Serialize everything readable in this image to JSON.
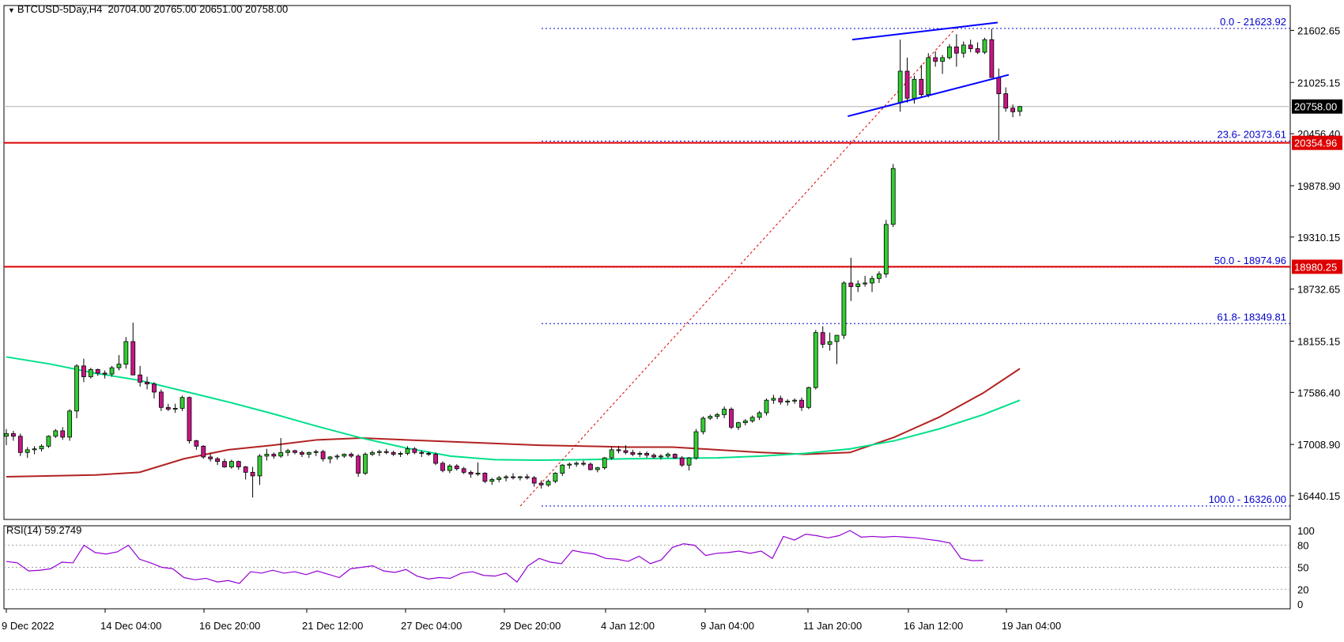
{
  "header": {
    "symbol": "BTCUSD-5Day,H4",
    "ohlc": "20704.00 20765.00 20651.00 20758.00"
  },
  "rsi": {
    "label": "RSI(14) 59.2749",
    "levels": [
      "100",
      "80",
      "50",
      "20",
      "0"
    ]
  },
  "colors": {
    "bull": "#32cd32",
    "bear": "#c71585",
    "ma_fast": "#00e08a",
    "ma_slow": "#b22222",
    "fib": "#0000cd",
    "sr_line": "#dd0000",
    "channel": "#0000ff",
    "rsi_line": "#9400d3"
  },
  "chart_data": {
    "type": "candlestick",
    "y_ticks": [
      "21602.65",
      "21025.15",
      "20456.40",
      "19878.90",
      "19310.15",
      "18732.65",
      "18155.15",
      "17586.40",
      "17008.90",
      "16440.15"
    ],
    "x_ticks": [
      "9 Dec 2022",
      "14 Dec 04:00",
      "16 Dec 20:00",
      "21 Dec 12:00",
      "27 Dec 04:00",
      "29 Dec 20:00",
      "4 Jan 12:00",
      "9 Jan 04:00",
      "11 Jan 20:00",
      "16 Jan 12:00",
      "19 Jan 04:00"
    ],
    "current_price": "20758.00",
    "price_levels": [
      {
        "label": "20354.96",
        "value": 20354.96
      },
      {
        "label": "18980.25",
        "value": 18980.25
      }
    ],
    "fibonacci": [
      {
        "label": "0.0 - 21623.92",
        "value": 21623.92
      },
      {
        "label": "23.6- 20373.61",
        "value": 20373.61
      },
      {
        "label": "50.0 - 18974.96",
        "value": 18974.96
      },
      {
        "label": "61.8- 18349.81",
        "value": 18349.81
      },
      {
        "label": "100.0 - 16326.00",
        "value": 16326.0
      }
    ],
    "candles": [
      [
        17100,
        17180,
        17000,
        17130
      ],
      [
        17130,
        17160,
        17050,
        17100
      ],
      [
        17100,
        17130,
        16880,
        16920
      ],
      [
        16920,
        16980,
        16860,
        16950
      ],
      [
        16950,
        16990,
        16900,
        16960
      ],
      [
        16960,
        17010,
        16930,
        16990
      ],
      [
        16990,
        17110,
        16970,
        17100
      ],
      [
        17100,
        17180,
        17080,
        17160
      ],
      [
        17160,
        17200,
        17060,
        17090
      ],
      [
        17090,
        17400,
        17050,
        17380
      ],
      [
        17380,
        17900,
        17300,
        17880
      ],
      [
        17880,
        17960,
        17700,
        17760
      ],
      [
        17760,
        17860,
        17740,
        17840
      ],
      [
        17840,
        17850,
        17770,
        17800
      ],
      [
        17800,
        17830,
        17740,
        17790
      ],
      [
        17790,
        17880,
        17760,
        17860
      ],
      [
        17860,
        18000,
        17830,
        17900
      ],
      [
        17900,
        18200,
        17850,
        18150
      ],
      [
        18150,
        18360,
        17800,
        17780
      ],
      [
        17780,
        17880,
        17650,
        17700
      ],
      [
        17700,
        17760,
        17620,
        17680
      ],
      [
        17680,
        17700,
        17520,
        17590
      ],
      [
        17590,
        17620,
        17380,
        17420
      ],
      [
        17420,
        17460,
        17380,
        17400
      ],
      [
        17400,
        17460,
        17360,
        17410
      ],
      [
        17410,
        17550,
        17380,
        17530
      ],
      [
        17530,
        17540,
        17020,
        17050
      ],
      [
        17050,
        17060,
        16950,
        16990
      ],
      [
        16990,
        17000,
        16850,
        16870
      ],
      [
        16870,
        16910,
        16820,
        16850
      ],
      [
        16850,
        16870,
        16780,
        16820
      ],
      [
        16820,
        16850,
        16750,
        16760
      ],
      [
        16760,
        16840,
        16740,
        16820
      ],
      [
        16820,
        16830,
        16730,
        16760
      ],
      [
        16760,
        16770,
        16620,
        16700
      ],
      [
        16700,
        16760,
        16420,
        16660
      ],
      [
        16660,
        16900,
        16560,
        16880
      ],
      [
        16880,
        16960,
        16830,
        16900
      ],
      [
        16900,
        16920,
        16850,
        16880
      ],
      [
        16880,
        17080,
        16860,
        16920
      ],
      [
        16920,
        16960,
        16880,
        16940
      ],
      [
        16940,
        16950,
        16900,
        16920
      ],
      [
        16920,
        16940,
        16870,
        16900
      ],
      [
        16900,
        16930,
        16860,
        16920
      ],
      [
        16920,
        16950,
        16880,
        16930
      ],
      [
        16930,
        16950,
        16820,
        16850
      ],
      [
        16850,
        16880,
        16800,
        16870
      ],
      [
        16870,
        16900,
        16840,
        16880
      ],
      [
        16880,
        16910,
        16860,
        16900
      ],
      [
        16900,
        16920,
        16860,
        16880
      ],
      [
        16880,
        16900,
        16650,
        16690
      ],
      [
        16690,
        16920,
        16670,
        16900
      ],
      [
        16900,
        16940,
        16880,
        16920
      ],
      [
        16920,
        16950,
        16880,
        16930
      ],
      [
        16930,
        16960,
        16900,
        16920
      ],
      [
        16920,
        16940,
        16880,
        16900
      ],
      [
        16900,
        16930,
        16870,
        16910
      ],
      [
        16910,
        16990,
        16890,
        16960
      ],
      [
        16960,
        16980,
        16900,
        16920
      ],
      [
        16920,
        16940,
        16870,
        16910
      ],
      [
        16910,
        16930,
        16880,
        16900
      ],
      [
        16900,
        16920,
        16780,
        16800
      ],
      [
        16800,
        16820,
        16700,
        16720
      ],
      [
        16720,
        16790,
        16690,
        16770
      ],
      [
        16770,
        16790,
        16720,
        16740
      ],
      [
        16740,
        16760,
        16680,
        16700
      ],
      [
        16700,
        16720,
        16640,
        16680
      ],
      [
        16680,
        16810,
        16660,
        16690
      ],
      [
        16690,
        16700,
        16580,
        16600
      ],
      [
        16600,
        16640,
        16560,
        16620
      ],
      [
        16620,
        16660,
        16590,
        16640
      ],
      [
        16640,
        16670,
        16600,
        16650
      ],
      [
        16650,
        16690,
        16620,
        16640
      ],
      [
        16640,
        16660,
        16610,
        16650
      ],
      [
        16650,
        16680,
        16620,
        16640
      ],
      [
        16640,
        16660,
        16540,
        16580
      ],
      [
        16580,
        16610,
        16520,
        16560
      ],
      [
        16560,
        16620,
        16540,
        16600
      ],
      [
        16600,
        16700,
        16580,
        16690
      ],
      [
        16690,
        16790,
        16660,
        16780
      ],
      [
        16780,
        16810,
        16740,
        16790
      ],
      [
        16790,
        16820,
        16760,
        16800
      ],
      [
        16800,
        16830,
        16770,
        16790
      ],
      [
        16790,
        16810,
        16720,
        16730
      ],
      [
        16730,
        16760,
        16700,
        16750
      ],
      [
        16750,
        16870,
        16730,
        16860
      ],
      [
        16860,
        16980,
        16840,
        16950
      ],
      [
        16950,
        16990,
        16910,
        16940
      ],
      [
        16940,
        17000,
        16900,
        16920
      ],
      [
        16920,
        16950,
        16880,
        16900
      ],
      [
        16900,
        16930,
        16870,
        16910
      ],
      [
        16910,
        16930,
        16860,
        16890
      ],
      [
        16890,
        16910,
        16850,
        16870
      ],
      [
        16870,
        16900,
        16840,
        16880
      ],
      [
        16880,
        16920,
        16860,
        16900
      ],
      [
        16900,
        16910,
        16850,
        16860
      ],
      [
        16860,
        16880,
        16760,
        16780
      ],
      [
        16780,
        16870,
        16720,
        16860
      ],
      [
        16860,
        17180,
        16840,
        17150
      ],
      [
        17150,
        17320,
        17120,
        17300
      ],
      [
        17300,
        17340,
        17280,
        17320
      ],
      [
        17320,
        17360,
        17290,
        17340
      ],
      [
        17340,
        17430,
        17300,
        17400
      ],
      [
        17400,
        17420,
        17180,
        17200
      ],
      [
        17200,
        17260,
        17170,
        17250
      ],
      [
        17250,
        17290,
        17220,
        17270
      ],
      [
        17270,
        17330,
        17250,
        17310
      ],
      [
        17310,
        17380,
        17280,
        17360
      ],
      [
        17360,
        17520,
        17330,
        17500
      ],
      [
        17500,
        17560,
        17460,
        17520
      ],
      [
        17520,
        17550,
        17450,
        17480
      ],
      [
        17480,
        17510,
        17440,
        17490
      ],
      [
        17490,
        17520,
        17460,
        17500
      ],
      [
        17500,
        17530,
        17380,
        17420
      ],
      [
        17420,
        17650,
        17400,
        17640
      ],
      [
        17640,
        18280,
        17620,
        18250
      ],
      [
        18250,
        18320,
        18080,
        18120
      ],
      [
        18120,
        18250,
        18050,
        18150
      ],
      [
        18150,
        18200,
        17900,
        18220
      ],
      [
        18220,
        18820,
        18180,
        18800
      ],
      [
        18800,
        19080,
        18600,
        18760
      ],
      [
        18760,
        18830,
        18700,
        18790
      ],
      [
        18790,
        18880,
        18760,
        18800
      ],
      [
        18800,
        18880,
        18700,
        18850
      ],
      [
        18850,
        18930,
        18800,
        18900
      ],
      [
        18900,
        19500,
        18860,
        19450
      ],
      [
        19450,
        20120,
        19420,
        20070
      ],
      [
        20800,
        21500,
        20700,
        21150
      ],
      [
        21150,
        21300,
        20800,
        20850
      ],
      [
        20850,
        21100,
        20790,
        21060
      ],
      [
        21060,
        21220,
        20860,
        20890
      ],
      [
        20890,
        21350,
        20860,
        21300
      ],
      [
        21300,
        21370,
        21200,
        21260
      ],
      [
        21260,
        21330,
        21120,
        21300
      ],
      [
        21300,
        21450,
        21280,
        21420
      ],
      [
        21420,
        21560,
        21200,
        21350
      ],
      [
        21350,
        21480,
        21300,
        21440
      ],
      [
        21440,
        21500,
        21360,
        21400
      ],
      [
        21400,
        21470,
        21340,
        21360
      ],
      [
        21360,
        21520,
        21340,
        21500
      ],
      [
        21500,
        21620,
        21080,
        21080
      ],
      [
        21080,
        21180,
        20380,
        20900
      ],
      [
        20900,
        20970,
        20700,
        20740
      ],
      [
        20740,
        20780,
        20640,
        20700
      ],
      [
        20704,
        20765,
        20651,
        20758
      ]
    ],
    "ma_fast": [
      [
        0,
        17980
      ],
      [
        40,
        17900
      ],
      [
        80,
        17800
      ],
      [
        120,
        17720
      ],
      [
        160,
        17600
      ],
      [
        200,
        17480
      ],
      [
        240,
        17350
      ],
      [
        280,
        17210
      ],
      [
        320,
        17080
      ],
      [
        360,
        16970
      ],
      [
        400,
        16880
      ],
      [
        440,
        16840
      ],
      [
        480,
        16835
      ],
      [
        520,
        16840
      ],
      [
        560,
        16850
      ],
      [
        600,
        16855
      ],
      [
        640,
        16860
      ],
      [
        680,
        16880
      ],
      [
        720,
        16910
      ],
      [
        760,
        16960
      ],
      [
        800,
        17050
      ],
      [
        840,
        17180
      ],
      [
        880,
        17340
      ],
      [
        913,
        17500
      ]
    ],
    "ma_slow": [
      [
        0,
        16650
      ],
      [
        40,
        16660
      ],
      [
        80,
        16670
      ],
      [
        120,
        16700
      ],
      [
        160,
        16850
      ],
      [
        200,
        16950
      ],
      [
        240,
        17000
      ],
      [
        280,
        17060
      ],
      [
        320,
        17080
      ],
      [
        360,
        17060
      ],
      [
        400,
        17040
      ],
      [
        440,
        17020
      ],
      [
        480,
        17000
      ],
      [
        520,
        16990
      ],
      [
        560,
        16980
      ],
      [
        600,
        16980
      ],
      [
        640,
        16950
      ],
      [
        680,
        16920
      ],
      [
        720,
        16900
      ],
      [
        760,
        16920
      ],
      [
        800,
        17090
      ],
      [
        840,
        17310
      ],
      [
        880,
        17580
      ],
      [
        913,
        17850
      ]
    ],
    "channel_upper": [
      [
        762,
        21500
      ],
      [
        893,
        21690
      ]
    ],
    "channel_lower": [
      [
        758,
        20650
      ],
      [
        903,
        21110
      ]
    ],
    "fib_diagonal": [
      [
        463,
        16326
      ],
      [
        855,
        21623.92
      ]
    ],
    "rsi_values": [
      [
        0,
        58
      ],
      [
        10,
        56
      ],
      [
        20,
        45
      ],
      [
        30,
        46
      ],
      [
        40,
        48
      ],
      [
        50,
        57
      ],
      [
        60,
        56
      ],
      [
        70,
        80
      ],
      [
        80,
        70
      ],
      [
        90,
        68
      ],
      [
        100,
        71
      ],
      [
        110,
        80
      ],
      [
        120,
        61
      ],
      [
        130,
        56
      ],
      [
        140,
        50
      ],
      [
        150,
        48
      ],
      [
        160,
        36
      ],
      [
        170,
        33
      ],
      [
        180,
        35
      ],
      [
        190,
        30
      ],
      [
        200,
        32
      ],
      [
        210,
        28
      ],
      [
        220,
        44
      ],
      [
        230,
        42
      ],
      [
        240,
        46
      ],
      [
        250,
        42
      ],
      [
        260,
        44
      ],
      [
        270,
        40
      ],
      [
        280,
        45
      ],
      [
        300,
        36
      ],
      [
        310,
        48
      ],
      [
        320,
        50
      ],
      [
        330,
        52
      ],
      [
        340,
        45
      ],
      [
        350,
        43
      ],
      [
        360,
        47
      ],
      [
        370,
        38
      ],
      [
        380,
        34
      ],
      [
        390,
        36
      ],
      [
        400,
        35
      ],
      [
        410,
        42
      ],
      [
        420,
        44
      ],
      [
        430,
        39
      ],
      [
        440,
        38
      ],
      [
        450,
        42
      ],
      [
        460,
        30
      ],
      [
        470,
        52
      ],
      [
        480,
        62
      ],
      [
        490,
        57
      ],
      [
        500,
        55
      ],
      [
        510,
        73
      ],
      [
        520,
        70
      ],
      [
        530,
        68
      ],
      [
        540,
        62
      ],
      [
        550,
        61
      ],
      [
        560,
        58
      ],
      [
        570,
        65
      ],
      [
        580,
        55
      ],
      [
        590,
        60
      ],
      [
        600,
        77
      ],
      [
        610,
        82
      ],
      [
        620,
        80
      ],
      [
        630,
        66
      ],
      [
        640,
        69
      ],
      [
        650,
        70
      ],
      [
        660,
        72
      ],
      [
        670,
        69
      ],
      [
        680,
        72
      ],
      [
        690,
        62
      ],
      [
        700,
        92
      ],
      [
        710,
        87
      ],
      [
        720,
        95
      ],
      [
        730,
        93
      ],
      [
        740,
        90
      ],
      [
        750,
        93
      ],
      [
        760,
        100
      ],
      [
        770,
        91
      ],
      [
        780,
        92
      ],
      [
        790,
        91
      ],
      [
        800,
        92
      ],
      [
        810,
        91
      ],
      [
        820,
        90
      ],
      [
        830,
        88
      ],
      [
        840,
        86
      ],
      [
        850,
        83
      ],
      [
        860,
        62
      ],
      [
        870,
        59
      ],
      [
        880,
        59.27
      ]
    ]
  }
}
